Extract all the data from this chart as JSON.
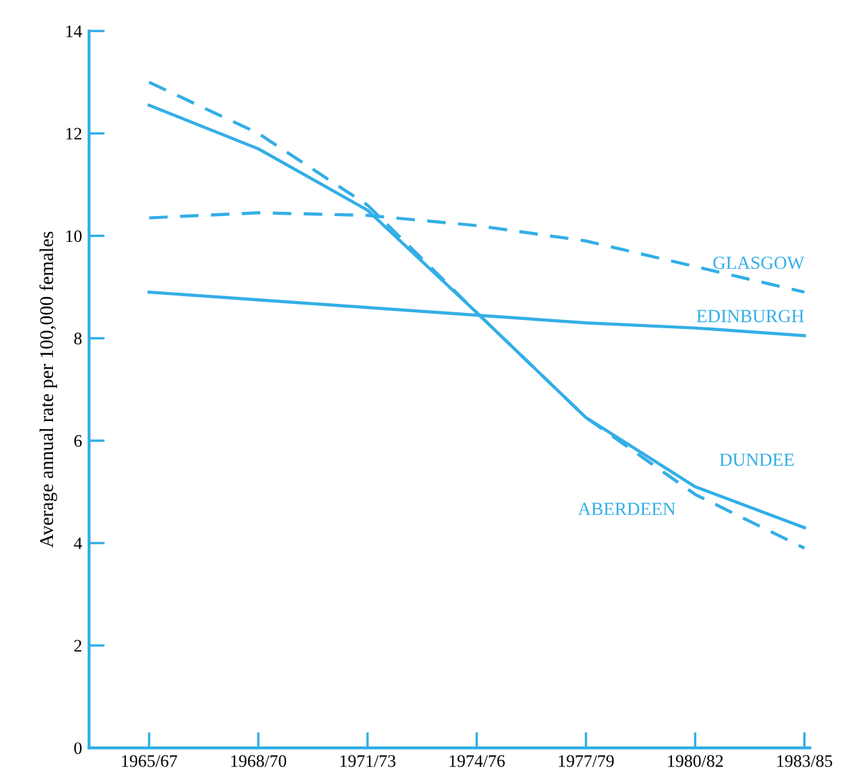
{
  "chart_data": {
    "type": "line",
    "ylabel": "Average annual rate per 100,000 females",
    "categories": [
      "1965/67",
      "1968/70",
      "1971/73",
      "1974/76",
      "1977/79",
      "1980/82",
      "1983/85"
    ],
    "series": [
      {
        "name": "GLASGOW",
        "color": "#33aee6",
        "line_style": "dashed",
        "values": [
          10.35,
          10.45,
          10.4,
          10.2,
          9.9,
          9.4,
          8.9
        ]
      },
      {
        "name": "EDINBURGH",
        "color": "#33aee6",
        "line_style": "solid",
        "values": [
          8.9,
          8.75,
          8.6,
          8.45,
          8.3,
          8.2,
          8.05
        ]
      },
      {
        "name": "DUNDEE",
        "color": "#33aee6",
        "line_style": "solid",
        "values": [
          12.55,
          11.7,
          10.5,
          8.5,
          6.45,
          5.1,
          4.3
        ]
      },
      {
        "name": "ABERDEEN",
        "color": "#33aee6",
        "line_style": "dashed",
        "values": [
          13.0,
          12.0,
          10.6,
          8.5,
          6.45,
          4.95,
          3.9
        ]
      }
    ],
    "ylim": [
      0,
      14
    ],
    "yticks": [
      0,
      2,
      4,
      6,
      8,
      10,
      12,
      14
    ],
    "grid": false,
    "legend": false,
    "marker": "none"
  }
}
